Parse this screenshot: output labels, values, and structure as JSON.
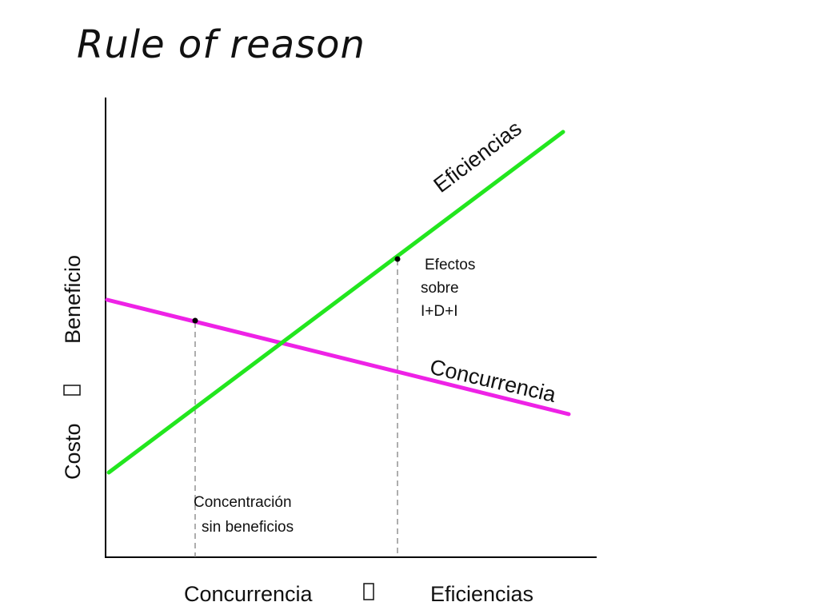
{
  "title": "Rule of reason",
  "y_axis_label": {
    "left": "Costo",
    "arrow": "",
    "right": "Beneficio"
  },
  "x_axis_label": {
    "left": "Concurrencia",
    "arrow": "",
    "right": "Eficiencias"
  },
  "lines": {
    "eficiencias": {
      "label": "Eficiencias",
      "color": "#22e61e"
    },
    "concurrencia": {
      "label": "Concurrencia",
      "color": "#ee22e6"
    }
  },
  "annotations": {
    "efectos": [
      "Efectos",
      "sobre",
      "I+D+I"
    ],
    "concentracion": [
      "Concentración",
      "sin beneficios"
    ]
  }
}
